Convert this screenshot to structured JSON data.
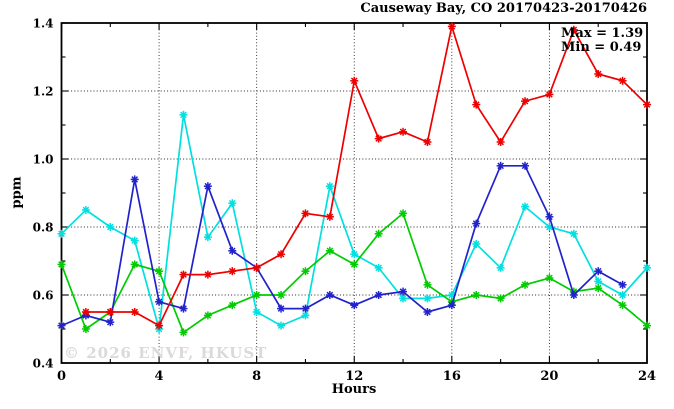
{
  "header": {
    "title": "Causeway Bay, CO 20170423-20170426"
  },
  "annotations": {
    "max_label": "Max = 1.39",
    "min_label": "Min = 0.49",
    "watermark": "© 2026 ENVF, HKUST"
  },
  "axes": {
    "x_label": "Hours",
    "y_label": "ppm"
  },
  "chart_data": {
    "type": "line",
    "title": "Causeway Bay, CO 20170423-20170426",
    "xlabel": "Hours",
    "ylabel": "ppm",
    "xlim": [
      0,
      24
    ],
    "ylim": [
      0.4,
      1.4
    ],
    "grid": "dotted",
    "legend_position": "none",
    "marker": "asterisk",
    "x_major_ticks": [
      "0",
      "4",
      "8",
      "12",
      "16",
      "20",
      "24"
    ],
    "x_minor_ticks": [
      2,
      6,
      10,
      14,
      18,
      22
    ],
    "y_major_ticks": [
      "0.4",
      "0.6",
      "0.8",
      "1.0",
      "1.2",
      "1.4"
    ],
    "y_minor_ticks": [
      0.5,
      0.7,
      0.9,
      1.1,
      1.3
    ],
    "x_gridlines": [
      4,
      8,
      12,
      16,
      20
    ],
    "y_gridlines": [
      0.6,
      0.8,
      1.0,
      1.2
    ],
    "x": [
      0,
      1,
      2,
      3,
      4,
      5,
      6,
      7,
      8,
      9,
      10,
      11,
      12,
      13,
      14,
      15,
      16,
      17,
      18,
      19,
      20,
      21,
      22,
      23,
      24
    ],
    "series": [
      {
        "name": "series-cyan",
        "color": "#00e0e0",
        "values": [
          0.78,
          0.85,
          0.8,
          0.76,
          0.5,
          1.13,
          0.77,
          0.87,
          0.55,
          0.51,
          0.54,
          0.92,
          0.72,
          0.68,
          0.59,
          0.59,
          0.6,
          0.75,
          0.68,
          0.86,
          0.8,
          0.78,
          0.64,
          0.6,
          0.68
        ]
      },
      {
        "name": "series-green",
        "color": "#00cc00",
        "values": [
          0.69,
          0.5,
          0.55,
          0.69,
          0.67,
          0.49,
          0.54,
          0.57,
          0.6,
          0.6,
          0.67,
          0.73,
          0.69,
          0.78,
          0.84,
          0.63,
          0.58,
          0.6,
          0.59,
          0.63,
          0.65,
          0.61,
          0.62,
          0.57,
          0.51
        ]
      },
      {
        "name": "series-blue",
        "color": "#2222cc",
        "values": [
          0.51,
          0.54,
          0.52,
          0.94,
          0.58,
          0.56,
          0.92,
          0.73,
          0.68,
          0.56,
          0.56,
          0.6,
          0.57,
          0.6,
          0.61,
          0.55,
          0.57,
          0.81,
          0.98,
          0.98,
          0.83,
          0.6,
          0.67,
          0.63,
          null
        ]
      },
      {
        "name": "series-red",
        "color": "#ee0000",
        "values": [
          null,
          0.55,
          0.55,
          0.55,
          0.51,
          0.66,
          0.66,
          0.67,
          0.68,
          0.72,
          0.84,
          0.83,
          1.23,
          1.06,
          1.08,
          1.05,
          1.39,
          1.16,
          1.05,
          1.17,
          1.19,
          1.38,
          1.25,
          1.23,
          1.16
        ]
      }
    ],
    "stats": {
      "max": 1.39,
      "min": 0.49
    }
  }
}
